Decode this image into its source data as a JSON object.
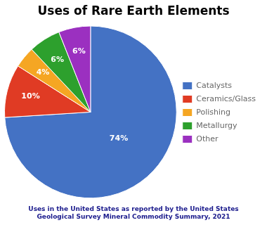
{
  "chart_data": {
    "type": "pie",
    "title": "Uses of Rare Earth Elements",
    "subtitle": "Uses in the United States as reported by the United States\nGeological Survey Mineral Commodity Summary, 2021",
    "categories": [
      "Catalysts",
      "Ceramics/Glass",
      "Polishing",
      "Metallurgy",
      "Other"
    ],
    "values": [
      74,
      10,
      4,
      6,
      6
    ],
    "value_labels": [
      "74%",
      "10%",
      "4%",
      "6%",
      "6%"
    ],
    "colors": [
      "#4472C4",
      "#E03B24",
      "#F5A623",
      "#2DA02D",
      "#9B30C0"
    ],
    "data_labels": true,
    "legend": "right"
  }
}
